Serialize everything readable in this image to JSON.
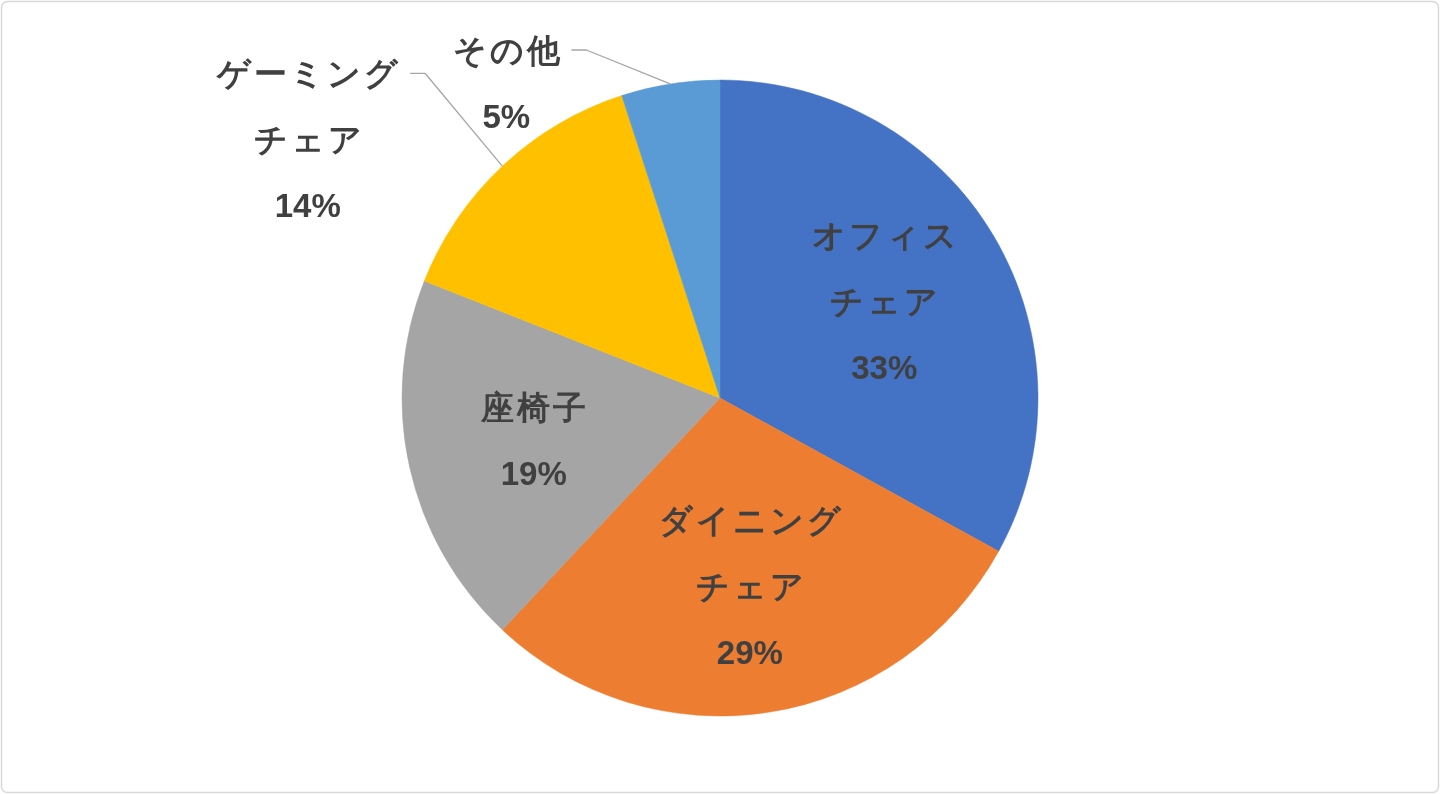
{
  "chart_data": {
    "type": "pie",
    "categories": [
      "オフィスチェア",
      "ダイニングチェア",
      "座椅子",
      "ゲーミングチェア",
      "その他"
    ],
    "values": [
      33,
      29,
      19,
      14,
      5
    ],
    "colors": [
      "#4472c4",
      "#ed7d31",
      "#a5a5a5",
      "#ffc000",
      "#5b9bd5"
    ],
    "value_labels": [
      "33%",
      "29%",
      "19%",
      "14%",
      "5%"
    ]
  }
}
